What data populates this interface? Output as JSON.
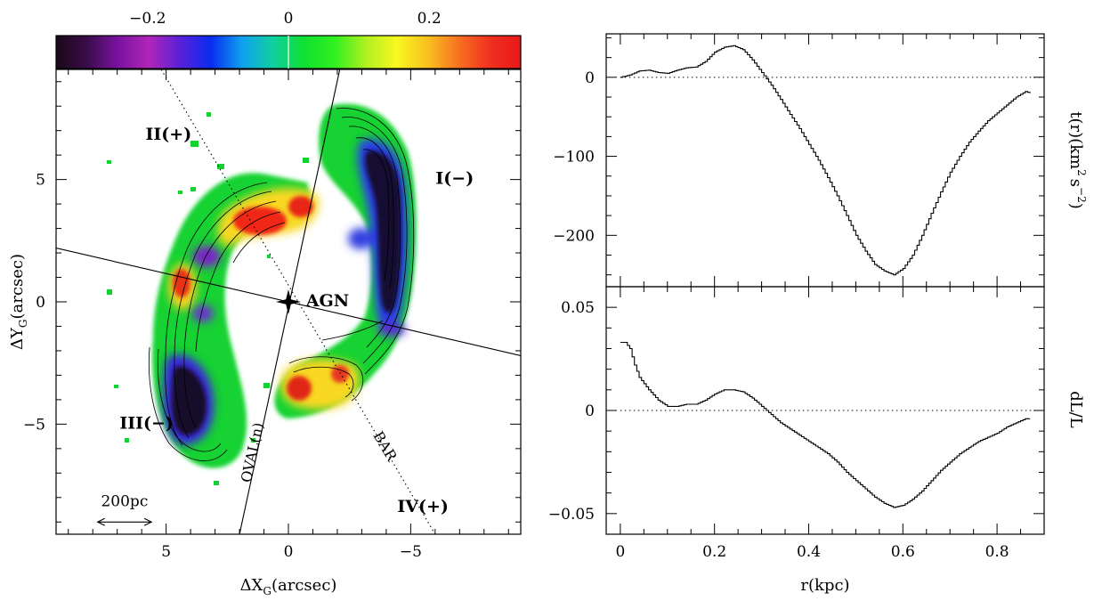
{
  "chart_data": [
    {
      "type": "heatmap",
      "xlabel": "ΔX",
      "xlabel_sub": "G",
      "xlabel_unit": "(arcsec)",
      "ylabel": "ΔY",
      "ylabel_sub": "G",
      "ylabel_unit": "(arcsec)",
      "xlim": [
        9.5,
        -9.5
      ],
      "ylim": [
        -9.5,
        9.5
      ],
      "xticks": [
        {
          "value": 5,
          "label": "5"
        },
        {
          "value": 0,
          "label": "0"
        },
        {
          "value": -5,
          "label": "−5"
        }
      ],
      "yticks": [
        {
          "value": 5,
          "label": "5"
        },
        {
          "value": 0,
          "label": "0"
        },
        {
          "value": -5,
          "label": "−5"
        }
      ],
      "colorbar": {
        "range": [
          -0.33,
          0.33
        ],
        "ticks": [
          {
            "value": -0.2,
            "label": "−0.2"
          },
          {
            "value": 0,
            "label": "0"
          },
          {
            "value": 0.2,
            "label": "0.2"
          }
        ],
        "colors": [
          "#1a0818",
          "#3a0c4a",
          "#7a12a0",
          "#b025b8",
          "#5a20d8",
          "#0a2cf0",
          "#10a0f0",
          "#10d0a0",
          "#10e030",
          "#30f020",
          "#b0f020",
          "#f8f820",
          "#f8c020",
          "#f87020",
          "#f03020",
          "#e81818"
        ]
      },
      "annotations": [
        {
          "text": "I(−)",
          "x": -6.8,
          "y": 5.0
        },
        {
          "text": "II(+)",
          "x": 4.9,
          "y": 6.8
        },
        {
          "text": "III(−)",
          "x": 5.8,
          "y": -5.0
        },
        {
          "text": "IV(+)",
          "x": -5.5,
          "y": -8.4
        },
        {
          "text": "AGN",
          "x": -1.6,
          "y": 0.0
        }
      ],
      "lines": [
        {
          "label": "OVAL(n)",
          "style": "solid",
          "from": [
            2.0,
            -9.5
          ],
          "to": [
            -2.1,
            9.5
          ]
        },
        {
          "label": "BAR",
          "style": "dotted",
          "from": [
            5.2,
            9.5
          ],
          "to": [
            -6.0,
            -9.5
          ]
        },
        {
          "label": "",
          "style": "solid",
          "from": [
            9.5,
            2.2
          ],
          "to": [
            -9.5,
            -2.2
          ]
        }
      ],
      "agn": {
        "x": 0.0,
        "y": 0.0
      },
      "scale_bar": {
        "label": "200pc",
        "x_from": 7.8,
        "x_to": 5.6,
        "y": -9.0
      }
    },
    {
      "type": "line",
      "xlabel": "",
      "ylabel": "t(r)(km² s⁻²)",
      "ylabel_parts": [
        "t(r)(km",
        "2",
        "s",
        "−2",
        ")"
      ],
      "xlim": [
        -0.03,
        0.9
      ],
      "ylim": [
        -265,
        55
      ],
      "yticks": [
        {
          "value": 0,
          "label": "0"
        },
        {
          "value": -100,
          "label": "−100"
        },
        {
          "value": -200,
          "label": "−200"
        }
      ],
      "reference_line": 0,
      "series": [
        {
          "x": [
            0.0,
            0.02,
            0.04,
            0.06,
            0.08,
            0.1,
            0.12,
            0.14,
            0.16,
            0.18,
            0.2,
            0.22,
            0.24,
            0.26,
            0.28,
            0.3,
            0.32,
            0.34,
            0.36,
            0.38,
            0.4,
            0.42,
            0.44,
            0.46,
            0.48,
            0.5,
            0.52,
            0.54,
            0.56,
            0.58,
            0.6,
            0.62,
            0.64,
            0.66,
            0.68,
            0.7,
            0.72,
            0.74,
            0.76,
            0.78,
            0.8,
            0.82,
            0.84,
            0.86,
            0.87
          ],
          "values": [
            0,
            3,
            8,
            9,
            6,
            5,
            9,
            12,
            13,
            20,
            32,
            38,
            40,
            35,
            22,
            6,
            -10,
            -28,
            -47,
            -65,
            -85,
            -105,
            -127,
            -150,
            -175,
            -200,
            -220,
            -237,
            -245,
            -250,
            -242,
            -225,
            -200,
            -172,
            -145,
            -120,
            -100,
            -82,
            -68,
            -55,
            -45,
            -35,
            -25,
            -18,
            -20
          ]
        }
      ]
    },
    {
      "type": "line",
      "xlabel": "r(kpc)",
      "ylabel": "dL/L",
      "xlim": [
        -0.03,
        0.9
      ],
      "ylim": [
        -0.06,
        0.06
      ],
      "xticks": [
        {
          "value": 0,
          "label": "0"
        },
        {
          "value": 0.2,
          "label": "0.2"
        },
        {
          "value": 0.4,
          "label": "0.4"
        },
        {
          "value": 0.6,
          "label": "0.6"
        },
        {
          "value": 0.8,
          "label": "0.8"
        }
      ],
      "yticks": [
        {
          "value": 0.05,
          "label": "0.05"
        },
        {
          "value": 0,
          "label": "0"
        },
        {
          "value": -0.05,
          "label": "−0.05"
        }
      ],
      "reference_line": 0,
      "series": [
        {
          "x": [
            0.0,
            0.01,
            0.02,
            0.03,
            0.04,
            0.06,
            0.08,
            0.1,
            0.12,
            0.14,
            0.16,
            0.18,
            0.2,
            0.22,
            0.24,
            0.26,
            0.28,
            0.3,
            0.32,
            0.34,
            0.36,
            0.38,
            0.4,
            0.42,
            0.44,
            0.46,
            0.48,
            0.5,
            0.52,
            0.54,
            0.56,
            0.58,
            0.6,
            0.62,
            0.64,
            0.66,
            0.68,
            0.7,
            0.72,
            0.74,
            0.76,
            0.78,
            0.8,
            0.82,
            0.84,
            0.86,
            0.87
          ],
          "values": [
            0.033,
            0.033,
            0.03,
            0.022,
            0.016,
            0.01,
            0.005,
            0.002,
            0.002,
            0.003,
            0.003,
            0.005,
            0.008,
            0.01,
            0.01,
            0.009,
            0.006,
            0.002,
            -0.002,
            -0.006,
            -0.009,
            -0.012,
            -0.015,
            -0.018,
            -0.021,
            -0.025,
            -0.03,
            -0.034,
            -0.038,
            -0.042,
            -0.045,
            -0.047,
            -0.046,
            -0.043,
            -0.039,
            -0.034,
            -0.029,
            -0.025,
            -0.021,
            -0.018,
            -0.015,
            -0.013,
            -0.011,
            -0.008,
            -0.006,
            -0.004,
            -0.004
          ]
        }
      ]
    }
  ]
}
